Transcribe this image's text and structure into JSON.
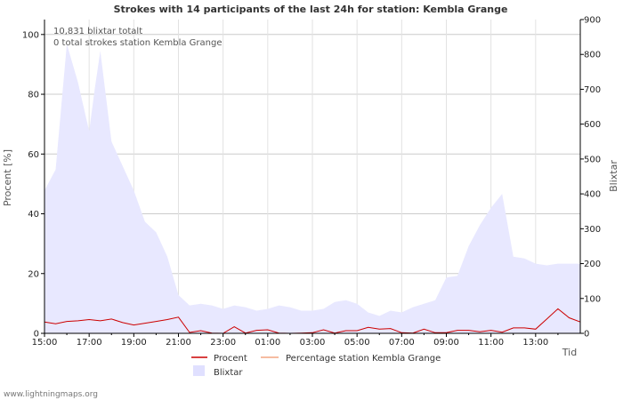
{
  "chart_data": {
    "type": "area",
    "title": "Strokes with 14 participants of the last 24h for station: Kembla Grange",
    "xlabel": "Tid",
    "ylabel_left": "Procent   [%]",
    "ylabel_right": "Blixtar",
    "y_left_range": [
      0,
      105
    ],
    "y_left_ticks": [
      0,
      20,
      40,
      60,
      80,
      100
    ],
    "y_right_range": [
      0,
      900
    ],
    "y_right_ticks": [
      0,
      100,
      200,
      300,
      400,
      500,
      600,
      700,
      800,
      900
    ],
    "x_range": [
      0,
      24
    ],
    "x_ticks": [
      {
        "t": 0,
        "label": "15:00"
      },
      {
        "t": 2,
        "label": "17:00"
      },
      {
        "t": 4,
        "label": "19:00"
      },
      {
        "t": 6,
        "label": "21:00"
      },
      {
        "t": 8,
        "label": "23:00"
      },
      {
        "t": 10,
        "label": "01:00"
      },
      {
        "t": 12,
        "label": "03:00"
      },
      {
        "t": 14,
        "label": "05:00"
      },
      {
        "t": 16,
        "label": "07:00"
      },
      {
        "t": 18,
        "label": "09:00"
      },
      {
        "t": 20,
        "label": "11:00"
      },
      {
        "t": 22,
        "label": "13:00"
      }
    ],
    "annotations": [
      "10,831 blixtar totalt",
      "0 total strokes station Kembla Grange"
    ],
    "series": [
      {
        "name": "Blixtar",
        "axis": "right",
        "style": "area",
        "color": "#e8e8ff",
        "t": [
          0,
          0.5,
          1,
          1.5,
          2,
          2.25,
          2.5,
          3,
          3.5,
          4,
          4.5,
          5,
          5.5,
          6,
          6.5,
          7,
          7.5,
          8,
          8.5,
          9,
          9.5,
          10,
          10.5,
          11,
          11.5,
          12,
          12.5,
          13,
          13.5,
          14,
          14.5,
          15,
          15.5,
          16,
          16.5,
          17,
          17.5,
          18,
          18.5,
          19,
          19.5,
          20,
          20.5,
          21,
          21.5,
          22,
          22.5,
          23,
          23.5,
          24
        ],
        "values": [
          410,
          470,
          830,
          720,
          580,
          700,
          810,
          550,
          480,
          410,
          320,
          290,
          220,
          110,
          80,
          85,
          80,
          70,
          80,
          75,
          65,
          70,
          80,
          75,
          65,
          65,
          70,
          90,
          95,
          85,
          60,
          50,
          65,
          60,
          75,
          85,
          95,
          160,
          165,
          250,
          310,
          360,
          400,
          220,
          215,
          200,
          195,
          200,
          200,
          200
        ]
      },
      {
        "name": "Procent",
        "axis": "left",
        "style": "line",
        "color": "#cc0000",
        "t": [
          0,
          0.5,
          1,
          1.5,
          2,
          2.5,
          3,
          3.5,
          4,
          4.5,
          5,
          5.5,
          6,
          6.5,
          7,
          7.5,
          8,
          8.5,
          9,
          9.5,
          10,
          10.5,
          11,
          11.5,
          12,
          12.5,
          13,
          13.5,
          14,
          14.5,
          15,
          15.5,
          16,
          16.5,
          17,
          17.5,
          18,
          18.5,
          19,
          19.5,
          20,
          20.5,
          21,
          21.5,
          22,
          22.5,
          23,
          23.5,
          24
        ],
        "values": [
          3.8,
          3.2,
          4.0,
          4.2,
          4.6,
          4.2,
          4.8,
          3.6,
          2.8,
          3.4,
          4.0,
          4.6,
          5.4,
          0.3,
          0.9,
          0.1,
          0.0,
          2.2,
          0.1,
          1.0,
          1.2,
          0.1,
          0.0,
          0.1,
          0.2,
          1.2,
          0.1,
          0.9,
          0.9,
          2.0,
          1.4,
          1.6,
          0.2,
          0.1,
          1.4,
          0.2,
          0.2,
          1.0,
          1.0,
          0.5,
          1.0,
          0.4,
          1.8,
          1.8,
          1.4,
          4.8,
          8.2,
          5.2,
          3.8
        ]
      },
      {
        "name": "Percentage station Kembla Grange",
        "axis": "left",
        "style": "line",
        "color": "#f4a582",
        "t": [],
        "values": []
      }
    ],
    "legend": {
      "placement": "bottom",
      "items": [
        {
          "label": "Procent",
          "color": "#cc0000",
          "kind": "line"
        },
        {
          "label": "Percentage station Kembla Grange",
          "color": "#f4a582",
          "kind": "line"
        },
        {
          "label": "Blixtar",
          "color": "#e0e0ff",
          "kind": "box"
        }
      ]
    }
  },
  "footer": {
    "credit": "www.lightningmaps.org"
  }
}
